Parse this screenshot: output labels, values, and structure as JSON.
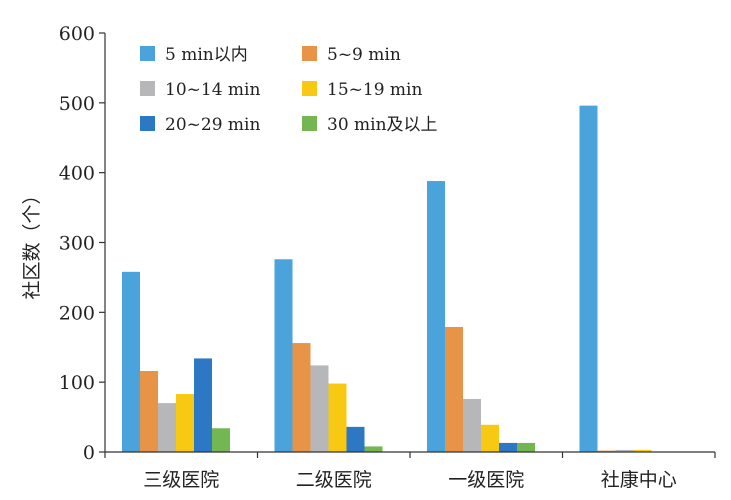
{
  "chart_data": {
    "type": "bar",
    "categories": [
      "三级医院",
      "二级医院",
      "一级医院",
      "社康中心"
    ],
    "series": [
      {
        "name": "5 min以内",
        "color": "#4BA3DC",
        "values": [
          258,
          276,
          388,
          496
        ]
      },
      {
        "name": "5~9 min",
        "color": "#E89448",
        "values": [
          116,
          156,
          179,
          2
        ]
      },
      {
        "name": "10~14 min",
        "color": "#B7B7B9",
        "values": [
          70,
          124,
          76,
          3
        ]
      },
      {
        "name": "15~19 min",
        "color": "#F8C913",
        "values": [
          83,
          98,
          39,
          3
        ]
      },
      {
        "name": "20~29 min",
        "color": "#2D78C4",
        "values": [
          134,
          36,
          13,
          0
        ]
      },
      {
        "name": "30 min及以上",
        "color": "#74B752",
        "values": [
          34,
          8,
          13,
          0
        ]
      }
    ],
    "ylabel": "社区数（个）",
    "ylim": [
      0,
      600
    ],
    "yticks": [
      0,
      100,
      200,
      300,
      400,
      500,
      600
    ],
    "grid": false,
    "legend_position": "top-left",
    "legend_columns": 2
  }
}
